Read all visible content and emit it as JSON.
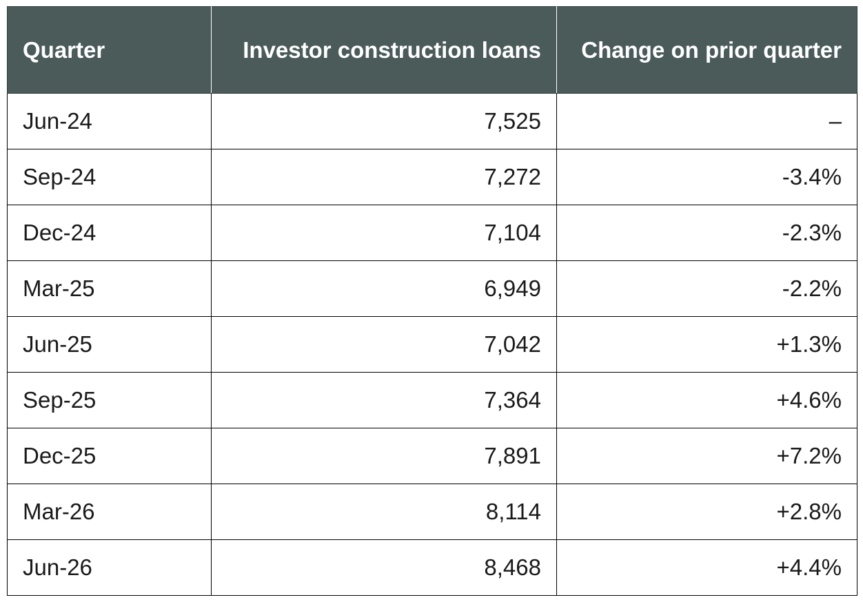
{
  "chart_data": {
    "type": "table",
    "columns": [
      "Quarter",
      "Investor construction loans",
      "Change on prior quarter"
    ],
    "rows": [
      {
        "quarter": "Jun-24",
        "loans": "7,525",
        "change": "–"
      },
      {
        "quarter": "Sep-24",
        "loans": "7,272",
        "change": "-3.4%"
      },
      {
        "quarter": "Dec-24",
        "loans": "7,104",
        "change": "-2.3%"
      },
      {
        "quarter": "Mar-25",
        "loans": "6,949",
        "change": "-2.2%"
      },
      {
        "quarter": "Jun-25",
        "loans": "7,042",
        "change": "+1.3%"
      },
      {
        "quarter": "Sep-25",
        "loans": "7,364",
        "change": "+4.6%"
      },
      {
        "quarter": "Dec-25",
        "loans": "7,891",
        "change": "+7.2%"
      },
      {
        "quarter": "Mar-26",
        "loans": "8,114",
        "change": "+2.8%"
      },
      {
        "quarter": "Jun-26",
        "loans": "8,468",
        "change": "+4.4%"
      }
    ]
  },
  "colors": {
    "header_background": "#4a5b5a",
    "header_text": "#ffffff",
    "cell_text": "#1a1a1a",
    "border": "#000000"
  }
}
